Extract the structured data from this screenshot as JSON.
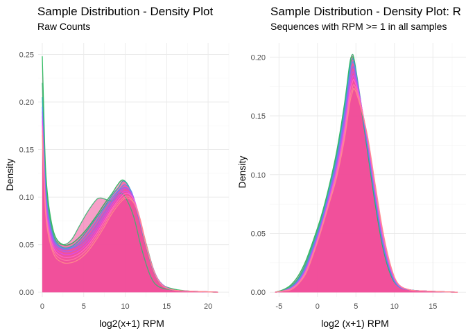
{
  "colors": {
    "fill": "#f0509a",
    "curves": [
      "#1db954",
      "#3cb371",
      "#20b2aa",
      "#5b8def",
      "#8a6cf0",
      "#b05cf0",
      "#d94cf0",
      "#ff66cc",
      "#ff7aa8",
      "#ff8c8c"
    ]
  },
  "chart_data": [
    {
      "type": "area",
      "title": "Sample Distribution - Density Plot",
      "subtitle": "Raw Counts",
      "xlabel": "log2(x+1) RPM",
      "ylabel": "Density",
      "xlim": [
        -0.5,
        22.5
      ],
      "ylim": [
        -0.005,
        0.262
      ],
      "xticks": [
        0,
        5,
        10,
        15,
        20
      ],
      "xtick_labels": [
        "0",
        "5",
        "10",
        "15",
        "20"
      ],
      "yticks": [
        0.0,
        0.05,
        0.1,
        0.15,
        0.2,
        0.25
      ],
      "ytick_labels": [
        "0.00",
        "0.05",
        "0.10",
        "0.15",
        "0.20",
        "0.25"
      ],
      "grid": true,
      "series": [
        {
          "x": [
            0,
            0.15,
            0.4,
            0.8,
            1.5,
            2.5,
            3.5,
            4.5,
            5.5,
            6.5,
            7.5,
            8.5,
            9.0,
            9.7,
            10.5,
            11.5,
            12.5,
            13.5,
            14.5,
            16,
            18,
            21.2
          ],
          "y": [
            0.248,
            0.2,
            0.13,
            0.09,
            0.06,
            0.05,
            0.051,
            0.058,
            0.068,
            0.08,
            0.093,
            0.105,
            0.112,
            0.118,
            0.11,
            0.085,
            0.052,
            0.022,
            0.008,
            0.003,
            0.001,
            0.0
          ]
        },
        {
          "x": [
            0,
            0.15,
            0.4,
            0.8,
            1.5,
            2.5,
            3.5,
            4.5,
            5.5,
            6.5,
            7.0,
            7.5,
            8.5,
            9.3,
            10.0,
            11.0,
            12.0,
            13.0,
            14.0,
            16,
            18,
            21.2
          ],
          "y": [
            0.22,
            0.18,
            0.12,
            0.085,
            0.057,
            0.05,
            0.055,
            0.07,
            0.085,
            0.097,
            0.099,
            0.098,
            0.096,
            0.104,
            0.1,
            0.08,
            0.045,
            0.018,
            0.006,
            0.002,
            0.001,
            0.0
          ]
        },
        {
          "x": [
            0,
            0.15,
            0.4,
            0.8,
            1.5,
            2.5,
            3.5,
            4.5,
            5.5,
            6.5,
            7.5,
            8.5,
            9.2,
            9.8,
            10.6,
            11.5,
            12.5,
            13.5,
            14.5,
            16,
            18,
            21.2
          ],
          "y": [
            0.205,
            0.17,
            0.115,
            0.08,
            0.055,
            0.047,
            0.048,
            0.055,
            0.066,
            0.078,
            0.09,
            0.103,
            0.11,
            0.117,
            0.108,
            0.082,
            0.048,
            0.02,
            0.007,
            0.002,
            0.001,
            0.0
          ]
        },
        {
          "x": [
            0,
            0.15,
            0.4,
            0.8,
            1.5,
            2.5,
            3.5,
            4.5,
            5.5,
            6.5,
            7.5,
            8.5,
            9.3,
            10.0,
            10.8,
            11.5,
            12.5,
            13.5,
            14.5,
            16,
            18,
            21.2
          ],
          "y": [
            0.195,
            0.16,
            0.11,
            0.078,
            0.054,
            0.046,
            0.047,
            0.052,
            0.062,
            0.074,
            0.088,
            0.1,
            0.108,
            0.113,
            0.105,
            0.083,
            0.05,
            0.021,
            0.007,
            0.002,
            0.001,
            0.0
          ]
        },
        {
          "x": [
            0,
            0.15,
            0.4,
            0.8,
            1.5,
            2.5,
            3.5,
            4.5,
            5.5,
            6.5,
            7.5,
            8.5,
            9.2,
            10.0,
            10.8,
            11.5,
            12.5,
            13.5,
            14.5,
            16,
            18,
            21.2
          ],
          "y": [
            0.19,
            0.155,
            0.105,
            0.075,
            0.052,
            0.045,
            0.046,
            0.05,
            0.058,
            0.07,
            0.084,
            0.097,
            0.106,
            0.11,
            0.103,
            0.082,
            0.05,
            0.021,
            0.007,
            0.002,
            0.001,
            0.0
          ]
        },
        {
          "x": [
            0,
            0.15,
            0.4,
            0.8,
            1.5,
            2.5,
            3.5,
            4.5,
            5.5,
            6.5,
            7.5,
            8.5,
            9.4,
            10.1,
            10.9,
            11.6,
            12.5,
            13.5,
            14.5,
            16,
            18,
            21.2
          ],
          "y": [
            0.185,
            0.15,
            0.1,
            0.072,
            0.05,
            0.043,
            0.043,
            0.047,
            0.055,
            0.067,
            0.081,
            0.095,
            0.105,
            0.109,
            0.102,
            0.082,
            0.051,
            0.022,
            0.008,
            0.002,
            0.001,
            0.0
          ]
        },
        {
          "x": [
            0,
            0.15,
            0.4,
            0.8,
            1.5,
            2.5,
            3.5,
            4.5,
            5.5,
            6.5,
            7.5,
            8.5,
            9.5,
            10.1,
            10.9,
            11.6,
            12.5,
            13.5,
            14.5,
            16,
            18,
            21.2
          ],
          "y": [
            0.18,
            0.145,
            0.095,
            0.068,
            0.047,
            0.04,
            0.04,
            0.044,
            0.052,
            0.064,
            0.078,
            0.092,
            0.103,
            0.106,
            0.1,
            0.081,
            0.05,
            0.021,
            0.007,
            0.002,
            0.001,
            0.0
          ]
        },
        {
          "x": [
            0,
            0.15,
            0.4,
            0.8,
            1.5,
            2.5,
            3.5,
            4.5,
            5.5,
            6.5,
            7.5,
            8.5,
            9.5,
            10.2,
            11.0,
            11.7,
            12.5,
            13.5,
            14.5,
            16,
            18,
            21.2
          ],
          "y": [
            0.175,
            0.14,
            0.09,
            0.064,
            0.044,
            0.037,
            0.037,
            0.041,
            0.049,
            0.061,
            0.075,
            0.089,
            0.1,
            0.104,
            0.098,
            0.08,
            0.05,
            0.021,
            0.007,
            0.002,
            0.001,
            0.0
          ]
        },
        {
          "x": [
            0,
            0.15,
            0.4,
            0.8,
            1.5,
            2.5,
            3.5,
            4.5,
            5.5,
            6.5,
            7.5,
            8.5,
            9.6,
            10.3,
            11.0,
            11.7,
            12.5,
            13.5,
            14.5,
            16,
            18,
            21.2
          ],
          "y": [
            0.17,
            0.135,
            0.087,
            0.06,
            0.041,
            0.034,
            0.034,
            0.038,
            0.046,
            0.058,
            0.072,
            0.087,
            0.098,
            0.101,
            0.095,
            0.078,
            0.049,
            0.021,
            0.007,
            0.002,
            0.001,
            0.0
          ]
        },
        {
          "x": [
            0,
            0.15,
            0.4,
            0.8,
            1.5,
            2.5,
            3.5,
            4.5,
            5.5,
            6.5,
            7.5,
            8.5,
            9.6,
            10.3,
            11.1,
            11.8,
            12.6,
            13.5,
            14.5,
            16,
            18,
            21.2
          ],
          "y": [
            0.165,
            0.13,
            0.083,
            0.057,
            0.038,
            0.031,
            0.031,
            0.035,
            0.043,
            0.055,
            0.069,
            0.084,
            0.096,
            0.099,
            0.093,
            0.077,
            0.048,
            0.021,
            0.007,
            0.002,
            0.001,
            0.0
          ]
        }
      ]
    },
    {
      "type": "area",
      "title": "Sample Distribution - Density Plot: R",
      "subtitle": "Sequences with RPM >= 1 in all samples",
      "xlabel": "log2 (x+1) RPM",
      "ylabel": "Density",
      "xlim": [
        -6.2,
        19.3
      ],
      "ylim": [
        -0.004,
        0.212
      ],
      "xticks": [
        -5,
        0,
        5,
        10,
        15
      ],
      "xtick_labels": [
        "-5",
        "0",
        "5",
        "10",
        "15"
      ],
      "yticks": [
        0.0,
        0.05,
        0.1,
        0.15,
        0.2
      ],
      "ytick_labels": [
        "0.00",
        "0.05",
        "0.10",
        "0.15",
        "0.20"
      ],
      "grid": true,
      "series": [
        {
          "x": [
            -5.5,
            -4.5,
            -3.5,
            -2.5,
            -1.5,
            -0.5,
            0.5,
            1.5,
            2.5,
            3.5,
            4.2,
            4.5,
            4.8,
            5.5,
            6.5,
            7.5,
            8.5,
            9.5,
            10.5,
            12,
            14,
            18.2
          ],
          "y": [
            0.0,
            0.002,
            0.006,
            0.014,
            0.027,
            0.045,
            0.065,
            0.09,
            0.12,
            0.16,
            0.195,
            0.2,
            0.196,
            0.165,
            0.12,
            0.075,
            0.038,
            0.015,
            0.005,
            0.002,
            0.001,
            0.0
          ]
        },
        {
          "x": [
            -5.5,
            -4.5,
            -3.5,
            -2.5,
            -1.5,
            -0.5,
            0.5,
            1.5,
            2.5,
            3.5,
            4.2,
            4.5,
            4.8,
            5.5,
            6.5,
            7.5,
            8.5,
            9.5,
            10.5,
            12,
            14,
            18.2
          ],
          "y": [
            0.0,
            0.002,
            0.005,
            0.012,
            0.025,
            0.043,
            0.063,
            0.088,
            0.118,
            0.158,
            0.193,
            0.202,
            0.197,
            0.168,
            0.123,
            0.078,
            0.04,
            0.016,
            0.005,
            0.002,
            0.001,
            0.0
          ]
        },
        {
          "x": [
            -5.5,
            -4.5,
            -3.5,
            -2.5,
            -1.5,
            -0.5,
            0.5,
            1.5,
            2.5,
            3.5,
            4.2,
            4.5,
            4.8,
            5.5,
            6.5,
            7.5,
            8.5,
            9.5,
            10.5,
            12,
            14,
            18.2
          ],
          "y": [
            0.0,
            0.001,
            0.004,
            0.011,
            0.023,
            0.041,
            0.061,
            0.086,
            0.115,
            0.155,
            0.19,
            0.198,
            0.195,
            0.166,
            0.122,
            0.078,
            0.04,
            0.016,
            0.005,
            0.002,
            0.001,
            0.0
          ]
        },
        {
          "x": [
            -5.5,
            -4.5,
            -3.5,
            -2.5,
            -1.5,
            -0.5,
            0.5,
            1.5,
            2.5,
            3.5,
            4.2,
            4.5,
            4.8,
            5.5,
            6.5,
            7.5,
            8.5,
            9.5,
            10.5,
            12,
            14,
            18.2
          ],
          "y": [
            0.0,
            0.001,
            0.004,
            0.01,
            0.022,
            0.04,
            0.06,
            0.085,
            0.113,
            0.152,
            0.187,
            0.195,
            0.193,
            0.167,
            0.124,
            0.08,
            0.041,
            0.017,
            0.005,
            0.002,
            0.001,
            0.0
          ]
        },
        {
          "x": [
            -5.5,
            -4.5,
            -3.5,
            -2.5,
            -1.5,
            -0.5,
            0.5,
            1.5,
            2.5,
            3.5,
            4.2,
            4.5,
            4.8,
            5.5,
            6.5,
            7.5,
            8.5,
            9.5,
            10.5,
            12,
            14,
            18.2
          ],
          "y": [
            0.0,
            0.001,
            0.003,
            0.009,
            0.02,
            0.038,
            0.058,
            0.083,
            0.11,
            0.148,
            0.183,
            0.19,
            0.19,
            0.167,
            0.126,
            0.082,
            0.043,
            0.018,
            0.006,
            0.002,
            0.001,
            0.0
          ]
        },
        {
          "x": [
            -5.5,
            -4.5,
            -3.5,
            -2.5,
            -1.5,
            -0.5,
            0.5,
            1.5,
            2.5,
            3.5,
            4.2,
            4.5,
            4.8,
            5.5,
            6.5,
            7.5,
            8.5,
            9.5,
            10.5,
            12,
            14,
            18.2
          ],
          "y": [
            0.0,
            0.001,
            0.003,
            0.009,
            0.02,
            0.037,
            0.057,
            0.081,
            0.107,
            0.144,
            0.178,
            0.186,
            0.186,
            0.166,
            0.128,
            0.084,
            0.045,
            0.019,
            0.006,
            0.002,
            0.001,
            0.0
          ]
        },
        {
          "x": [
            -5.5,
            -4.5,
            -3.5,
            -2.5,
            -1.5,
            -0.5,
            0.5,
            1.5,
            2.5,
            3.5,
            4.2,
            4.5,
            4.8,
            5.5,
            6.5,
            7.5,
            8.5,
            9.5,
            10.5,
            12,
            14,
            18.2
          ],
          "y": [
            0.0,
            0.001,
            0.003,
            0.008,
            0.019,
            0.036,
            0.056,
            0.079,
            0.105,
            0.14,
            0.174,
            0.182,
            0.183,
            0.165,
            0.13,
            0.086,
            0.047,
            0.02,
            0.006,
            0.002,
            0.001,
            0.0
          ]
        },
        {
          "x": [
            -5.5,
            -4.5,
            -3.5,
            -2.5,
            -1.5,
            -0.5,
            0.5,
            1.5,
            2.5,
            3.5,
            4.2,
            4.5,
            4.8,
            5.5,
            6.5,
            7.5,
            8.5,
            9.5,
            10.5,
            12,
            14,
            18.2
          ],
          "y": [
            0.0,
            0.001,
            0.003,
            0.008,
            0.018,
            0.035,
            0.055,
            0.078,
            0.103,
            0.137,
            0.17,
            0.178,
            0.18,
            0.164,
            0.131,
            0.088,
            0.048,
            0.021,
            0.007,
            0.002,
            0.001,
            0.0
          ]
        },
        {
          "x": [
            -5.5,
            -4.5,
            -3.5,
            -2.5,
            -1.5,
            -0.5,
            0.5,
            1.5,
            2.5,
            3.5,
            4.2,
            4.5,
            4.8,
            5.5,
            6.5,
            7.5,
            8.5,
            9.5,
            10.5,
            12,
            14,
            18.2
          ],
          "y": [
            0.0,
            0.001,
            0.002,
            0.007,
            0.017,
            0.034,
            0.054,
            0.076,
            0.1,
            0.133,
            0.165,
            0.173,
            0.176,
            0.162,
            0.132,
            0.09,
            0.05,
            0.022,
            0.007,
            0.002,
            0.001,
            0.0
          ]
        },
        {
          "x": [
            -5.5,
            -4.5,
            -3.5,
            -2.5,
            -1.5,
            -0.5,
            0.5,
            1.5,
            2.5,
            3.5,
            4.2,
            4.5,
            4.8,
            5.5,
            6.5,
            7.5,
            8.5,
            9.5,
            10.5,
            12,
            14,
            18.2
          ],
          "y": [
            0.0,
            0.001,
            0.002,
            0.007,
            0.016,
            0.033,
            0.053,
            0.075,
            0.098,
            0.13,
            0.161,
            0.169,
            0.173,
            0.16,
            0.133,
            0.092,
            0.052,
            0.023,
            0.007,
            0.002,
            0.001,
            0.0
          ]
        }
      ]
    }
  ]
}
